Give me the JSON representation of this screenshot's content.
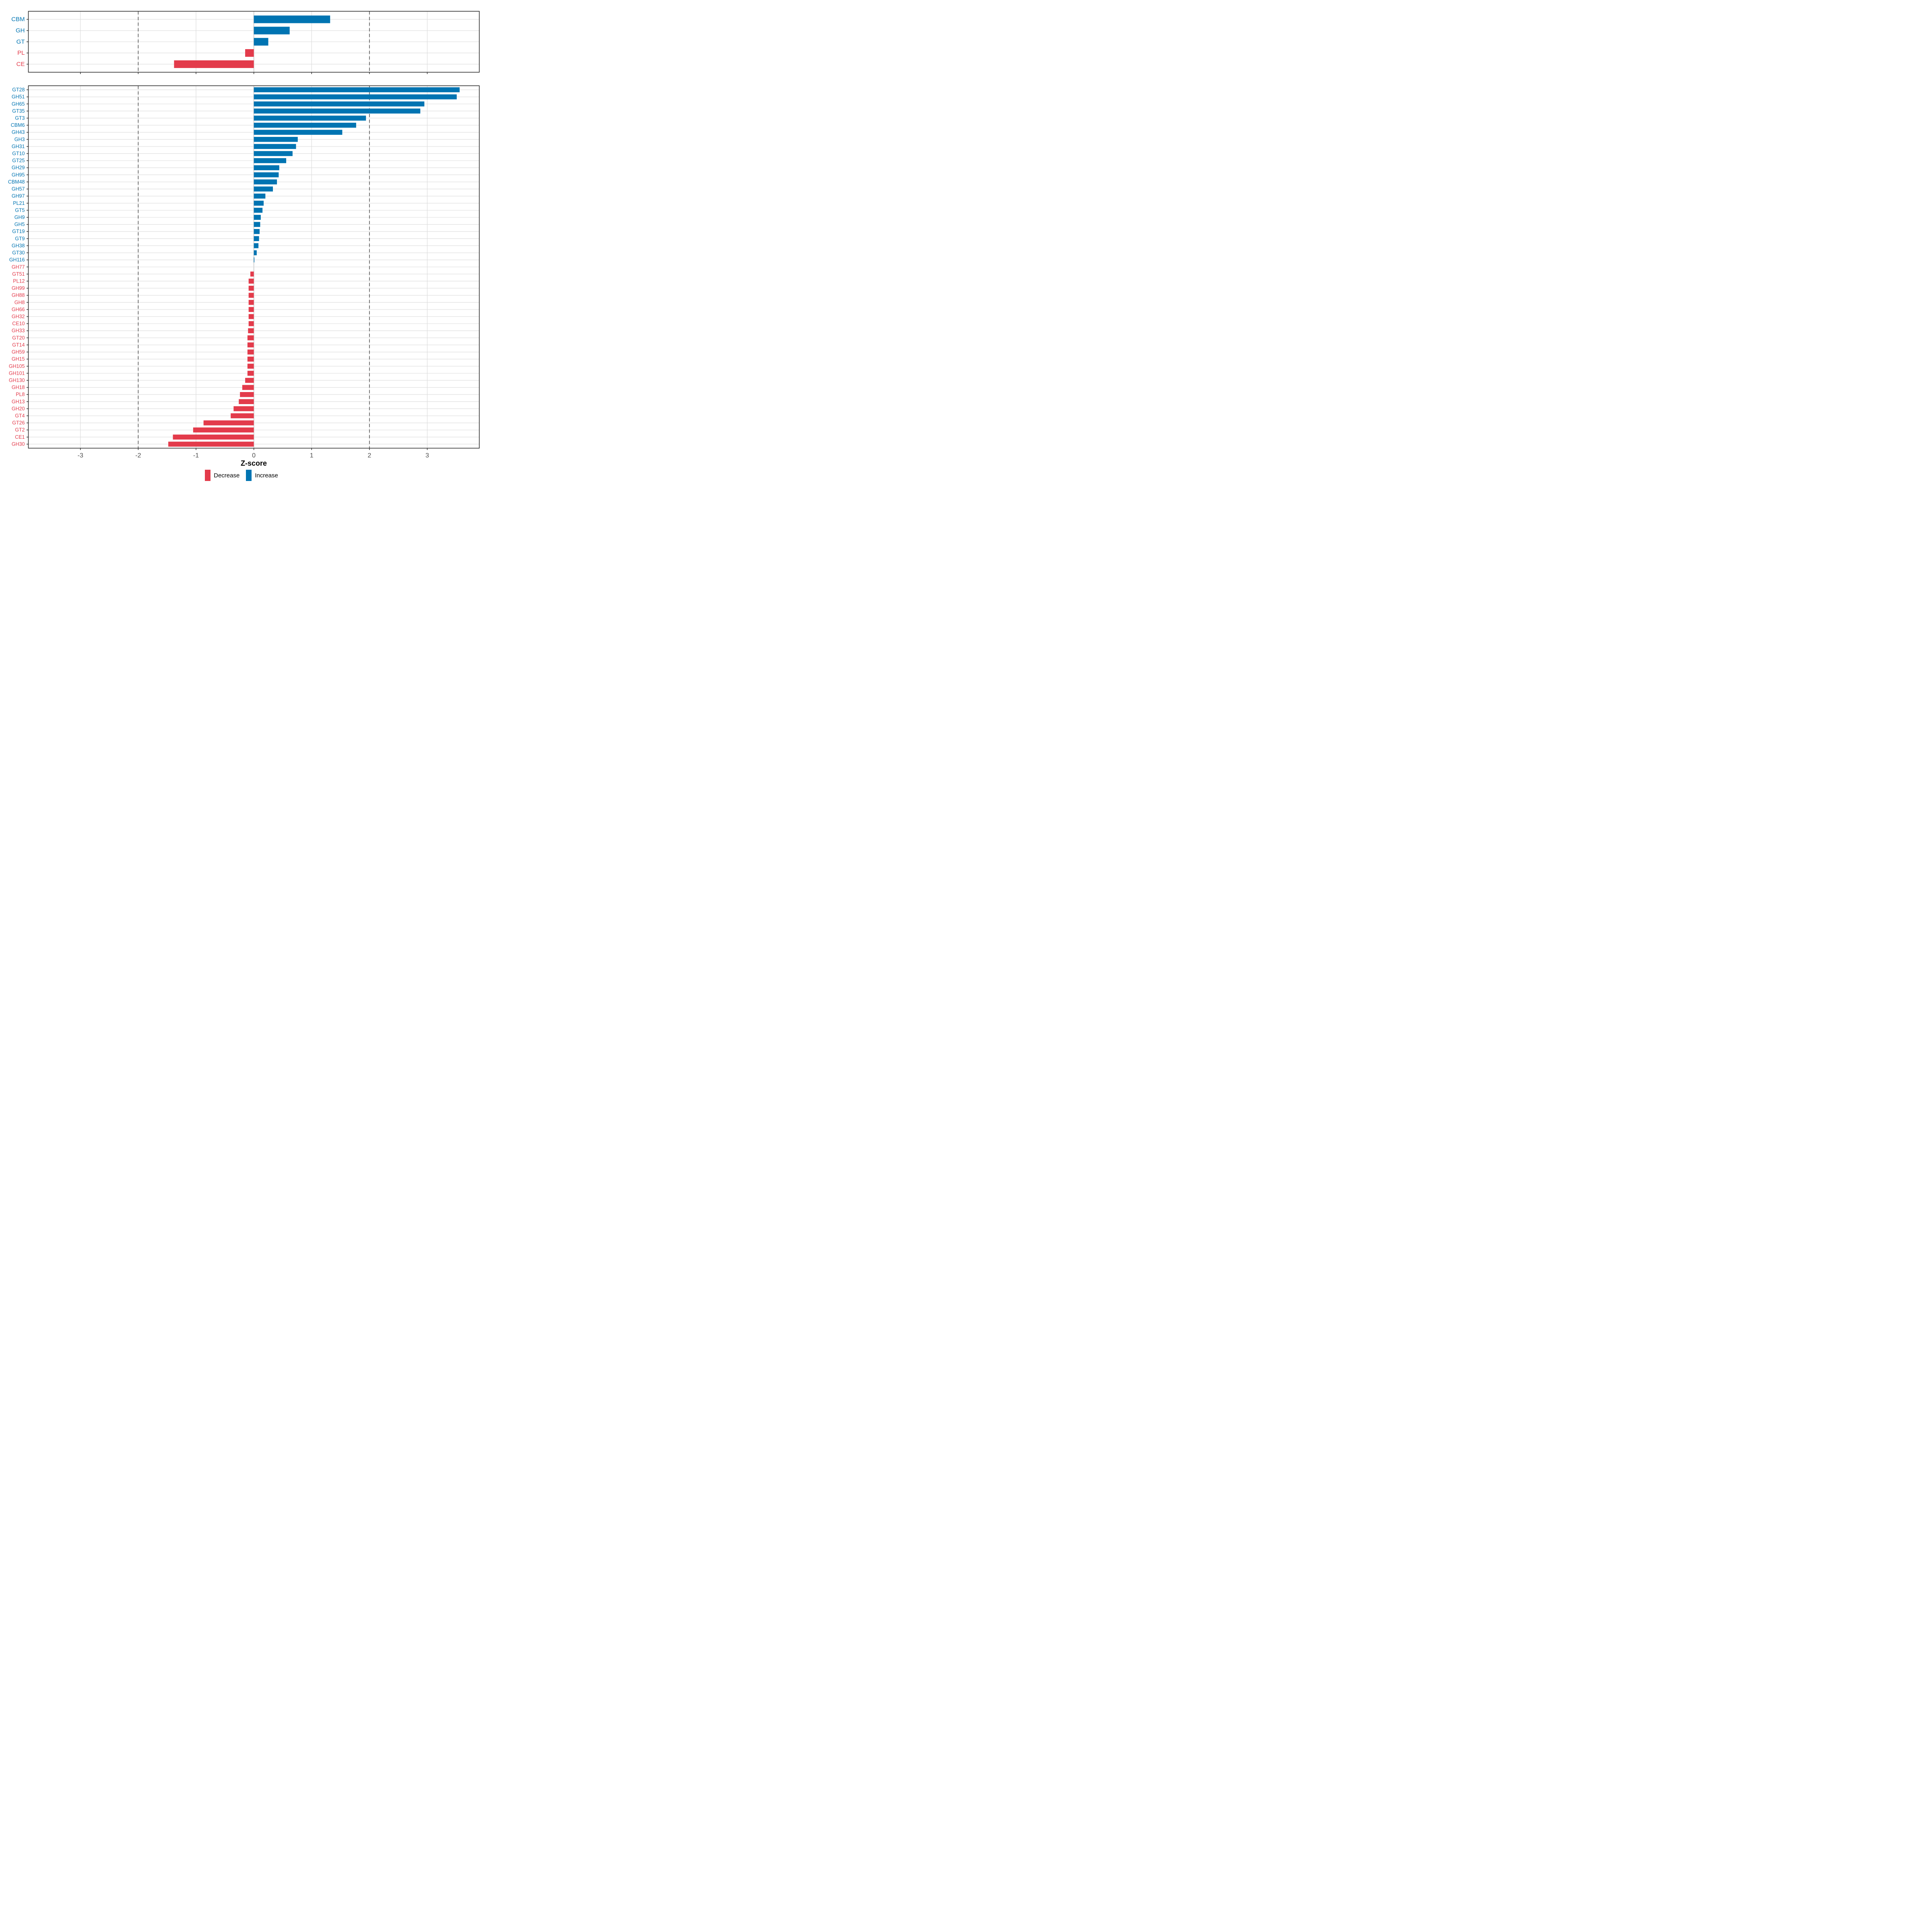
{
  "chart_data": {
    "type": "bar",
    "orientation": "horizontal",
    "title": "",
    "xlabel": "Z-score",
    "x_ticks": [
      -3,
      -2,
      -1,
      0,
      1,
      2,
      3
    ],
    "xlim": [
      -3.9,
      3.9
    ],
    "dashed_guides_x": [
      -2,
      2
    ],
    "grid": "on",
    "legend_position": "bottom-center",
    "colors": {
      "increase": "#0074b2",
      "decrease": "#e33b4b",
      "grid": "#dcdcdc",
      "zero_line": "#d9d9d9",
      "dashed_guide": "#3f3f3f",
      "axis_text": "#4d4d4d",
      "panel_border": "#2f2f2f",
      "tick_mark": "#333333"
    },
    "legend": [
      {
        "label": "Decrease",
        "direction": "decrease"
      },
      {
        "label": "Increase",
        "direction": "increase"
      }
    ],
    "panels": [
      {
        "name": "cazyme-class-panel",
        "categories": [
          "CBM",
          "GH",
          "GT",
          "PL",
          "CE"
        ],
        "values": [
          1.32,
          0.62,
          0.25,
          -0.15,
          -1.38
        ]
      },
      {
        "name": "cazyme-family-panel",
        "categories": [
          "GT28",
          "GH51",
          "GH65",
          "GT35",
          "GT3",
          "CBM6",
          "GH43",
          "GH3",
          "GH31",
          "GT10",
          "GT25",
          "GH29",
          "GH95",
          "CBM48",
          "GH57",
          "GH97",
          "PL21",
          "GT5",
          "GH9",
          "GH5",
          "GT19",
          "GT9",
          "GH38",
          "GT30",
          "GH116",
          "GH77",
          "GT51",
          "PL12",
          "GH99",
          "GH88",
          "GH8",
          "GH66",
          "GH32",
          "CE10",
          "GH33",
          "GT20",
          "GT14",
          "GH59",
          "GH15",
          "GH105",
          "GH101",
          "GH130",
          "GH18",
          "PL8",
          "GH13",
          "GH20",
          "GT4",
          "GT26",
          "GT2",
          "CE1",
          "GH30"
        ],
        "values": [
          3.56,
          3.51,
          2.95,
          2.88,
          1.94,
          1.77,
          1.53,
          0.76,
          0.73,
          0.67,
          0.56,
          0.44,
          0.43,
          0.4,
          0.33,
          0.2,
          0.17,
          0.15,
          0.12,
          0.11,
          0.1,
          0.09,
          0.08,
          0.05,
          0.01,
          0.0,
          -0.06,
          -0.09,
          -0.09,
          -0.09,
          -0.09,
          -0.09,
          -0.09,
          -0.09,
          -0.1,
          -0.11,
          -0.11,
          -0.11,
          -0.11,
          -0.11,
          -0.11,
          -0.15,
          -0.2,
          -0.24,
          -0.26,
          -0.35,
          -0.4,
          -0.87,
          -1.05,
          -1.4,
          -1.48
        ]
      }
    ]
  }
}
